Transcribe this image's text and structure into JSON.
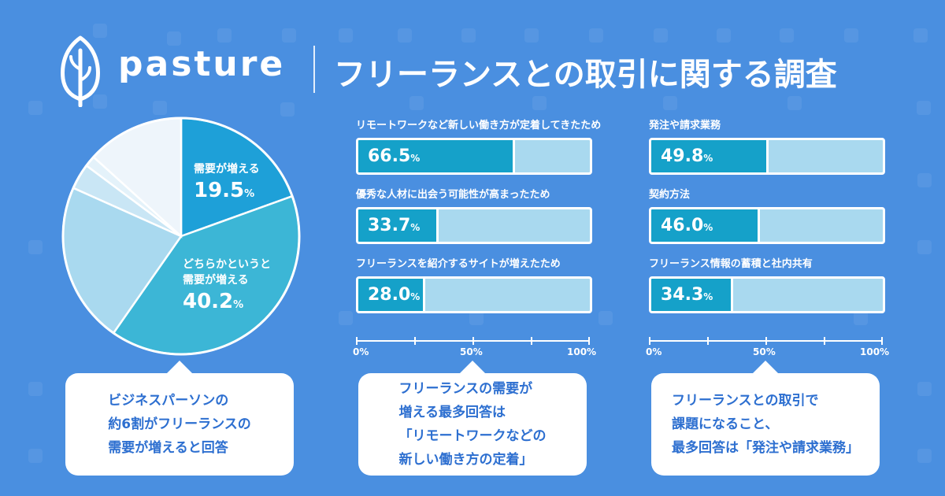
{
  "header": {
    "brand": "pasture",
    "headline": "フリーランスとの取引に関する調査"
  },
  "colors": {
    "background": "#4a8fe0",
    "pie_slices": [
      "#1ea0d8",
      "#3cb6d6",
      "#a9d9ef",
      "#c9e6f5",
      "#e4f2fa",
      "#eef5fb"
    ],
    "bar_fill": "#15a1c9",
    "bar_track": "#a9d9ef",
    "callout_text": "#2d6fd0"
  },
  "chart_data": [
    {
      "type": "pie",
      "slices": [
        {
          "label": "需要が増える",
          "value": 19.5,
          "pct": "%"
        },
        {
          "label_lines": [
            "どちらかというと",
            "需要が増える"
          ],
          "value": 40.2,
          "pct": "%"
        },
        {
          "value": 22.0
        },
        {
          "value": 3.5
        },
        {
          "value": 1.5
        },
        {
          "value": 13.3
        }
      ]
    },
    {
      "type": "bar",
      "orientation": "horizontal",
      "categories": [
        "リモートワークなど新しい働き方が定着してきたため",
        "優秀な人材に出会う可能性が高まったため",
        "フリーランスを紹介するサイトが増えたため"
      ],
      "values": [
        66.5,
        33.7,
        28.0
      ],
      "value_labels": [
        "66.5",
        "33.7",
        "28.0"
      ],
      "unit": "%",
      "xlim": [
        0,
        100
      ],
      "ticks": [
        "0%",
        "50%",
        "100%"
      ]
    },
    {
      "type": "bar",
      "orientation": "horizontal",
      "categories": [
        "発注や請求業務",
        "契約方法",
        "フリーランス情報の蓄積と社内共有"
      ],
      "values": [
        49.8,
        46.0,
        34.3
      ],
      "value_labels": [
        "49.8",
        "46.0",
        "34.3"
      ],
      "unit": "%",
      "xlim": [
        0,
        100
      ],
      "ticks": [
        "0%",
        "50%",
        "100%"
      ]
    }
  ],
  "callouts": [
    {
      "lines": [
        "ビジネスパーソンの",
        "約6割がフリーランスの",
        "需要が増えると回答"
      ]
    },
    {
      "lines": [
        "フリーランスの需要が",
        "増える最多回答は",
        "「リモートワークなどの",
        "新しい働き方の定着」"
      ]
    },
    {
      "lines": [
        "フリーランスとの取引で",
        "課題になること、",
        "最多回答は「発注や請求業務」"
      ]
    }
  ]
}
